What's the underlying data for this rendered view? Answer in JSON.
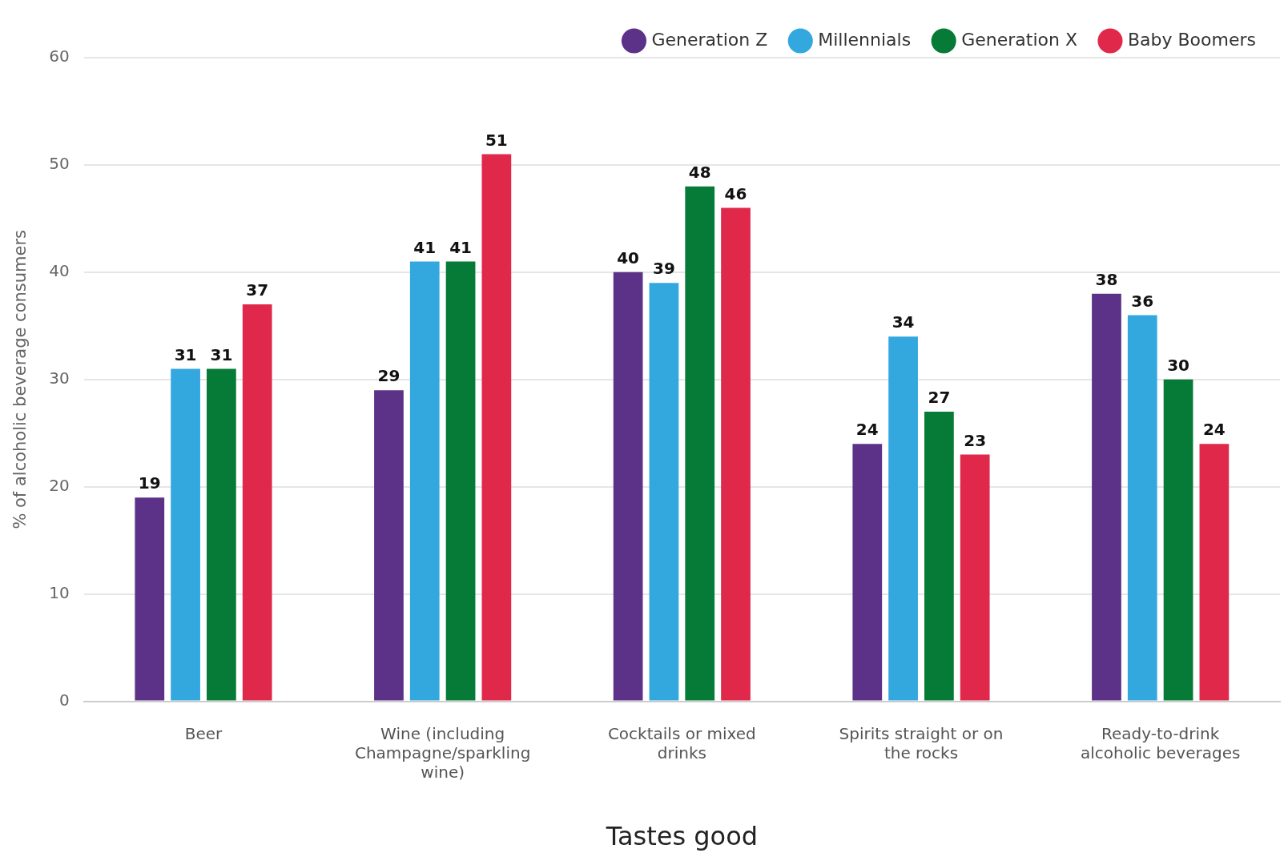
{
  "chart_data": {
    "type": "bar",
    "xlabel": "Tastes good",
    "ylabel": "% of alcoholic beverage consumers",
    "categories": [
      "Beer",
      "Wine (including Champagne/sparkling wine)",
      "Cocktails or mixed drinks",
      "Spirits straight or on the rocks",
      "Ready-to-drink alcoholic beverages"
    ],
    "series": [
      {
        "name": "Generation Z",
        "color": "#5c3289",
        "values": [
          19,
          29,
          40,
          24,
          38
        ]
      },
      {
        "name": "Millennials",
        "color": "#33a8df",
        "values": [
          31,
          41,
          39,
          34,
          36
        ]
      },
      {
        "name": "Generation X",
        "color": "#067a37",
        "values": [
          31,
          41,
          48,
          27,
          30
        ]
      },
      {
        "name": "Baby Boomers",
        "color": "#e0294a",
        "values": [
          37,
          51,
          46,
          23,
          24
        ]
      }
    ],
    "ylim": [
      0,
      60
    ],
    "yticks": [
      0,
      10,
      20,
      30,
      40,
      50,
      60
    ],
    "grid": "y",
    "legend": "top right",
    "data_labels": true
  }
}
